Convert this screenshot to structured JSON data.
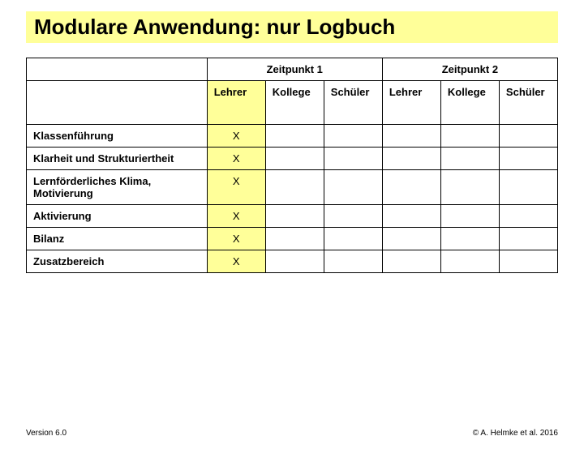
{
  "colors": {
    "title_bg": "#ffff99",
    "highlight_bg": "#ffff99",
    "border": "#000000",
    "text": "#000000",
    "bg": "#ffffff"
  },
  "title": "Modulare Anwendung: nur Logbuch",
  "table": {
    "header_groups": [
      "Zeitpunkt 1",
      "Zeitpunkt 2"
    ],
    "sub_headers": [
      "Lehrer",
      "Kollege",
      "Schüler",
      "Lehrer",
      "Kollege",
      "Schüler"
    ],
    "highlight_col_index": 0,
    "rows": [
      {
        "label": "Klassenführung",
        "cells": [
          "X",
          "",
          "",
          "",
          "",
          ""
        ]
      },
      {
        "label": "Klarheit und Strukturiertheit",
        "cells": [
          "X",
          "",
          "",
          "",
          "",
          ""
        ]
      },
      {
        "label": "Lernförderliches Klima, Motivierung",
        "cells": [
          "X",
          "",
          "",
          "",
          "",
          ""
        ]
      },
      {
        "label": "Aktivierung",
        "cells": [
          "X",
          "",
          "",
          "",
          "",
          ""
        ]
      },
      {
        "label": "Bilanz",
        "cells": [
          "X",
          "",
          "",
          "",
          "",
          ""
        ]
      },
      {
        "label": "Zusatzbereich",
        "cells": [
          "X",
          "",
          "",
          "",
          "",
          ""
        ]
      }
    ]
  },
  "footer": {
    "left": "Version 6.0",
    "right": "© A. Helmke et al. 2016"
  },
  "typography": {
    "title_fontsize": 26,
    "table_fontsize": 13,
    "footer_fontsize": 10
  }
}
